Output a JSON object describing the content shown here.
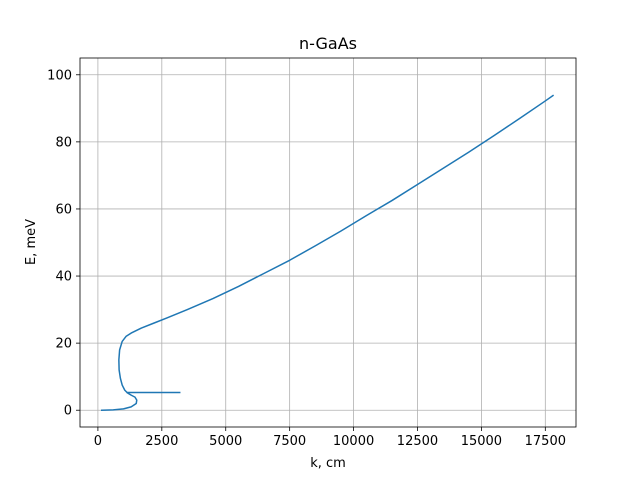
{
  "chart_data": {
    "type": "line",
    "title": "n-GaAs",
    "xlabel": "k, cm",
    "ylabel": "E, meV",
    "xlim": [
      -700,
      18700
    ],
    "ylim": [
      -5,
      105
    ],
    "grid": true,
    "xticks": [
      0,
      2500,
      5000,
      7500,
      10000,
      12500,
      15000,
      17500
    ],
    "yticks": [
      0,
      20,
      40,
      60,
      80,
      100
    ],
    "series": [
      {
        "color": "#1f77b4",
        "points": [
          [
            150,
            0.0
          ],
          [
            600,
            0.1
          ],
          [
            1000,
            0.4
          ],
          [
            1300,
            1.0
          ],
          [
            1500,
            2.0
          ],
          [
            1520,
            3.0
          ],
          [
            1450,
            3.9
          ],
          [
            1300,
            4.5
          ],
          [
            1150,
            5.2
          ],
          [
            1050,
            6.0
          ],
          [
            950,
            7.5
          ],
          [
            880,
            9.5
          ],
          [
            830,
            12.0
          ],
          [
            820,
            15.0
          ],
          [
            850,
            18.0
          ],
          [
            950,
            20.5
          ],
          [
            1100,
            22.0
          ],
          [
            1300,
            23.0
          ],
          [
            1700,
            24.5
          ],
          [
            2200,
            26.0
          ],
          [
            2700,
            27.5
          ],
          [
            3500,
            30.0
          ],
          [
            4500,
            33.3
          ],
          [
            5500,
            36.9
          ],
          [
            6500,
            40.8
          ],
          [
            7500,
            44.7
          ],
          [
            8500,
            49.0
          ],
          [
            9500,
            53.4
          ],
          [
            10500,
            58.0
          ],
          [
            11500,
            62.5
          ],
          [
            12500,
            67.3
          ],
          [
            13500,
            72.1
          ],
          [
            14500,
            76.9
          ],
          [
            15500,
            81.9
          ],
          [
            16500,
            87.0
          ],
          [
            17500,
            92.2
          ],
          [
            17800,
            93.8
          ]
        ]
      },
      {
        "color": "#1f77b4",
        "points": [
          [
            1150,
            5.3
          ],
          [
            3200,
            5.3
          ]
        ]
      }
    ]
  }
}
